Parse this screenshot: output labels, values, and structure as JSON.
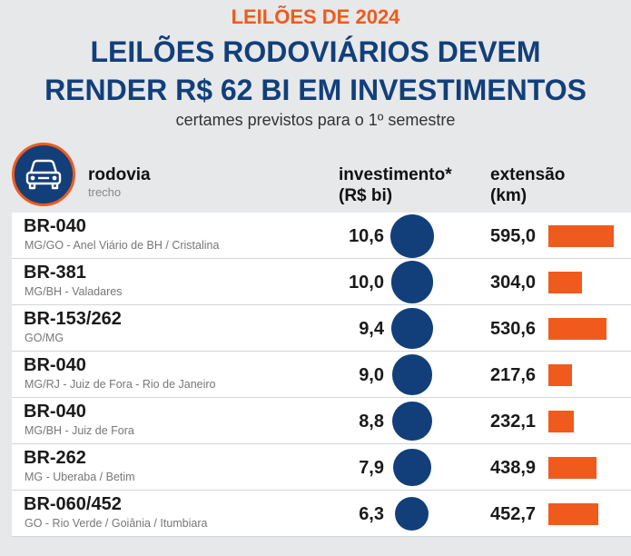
{
  "header": {
    "kicker": "LEILÕES DE 2024",
    "title_line1": "LEILÕES RODOVIÁRIOS DEVEM",
    "title_line2": "RENDER R$ 62 BI EM INVESTIMENTOS",
    "subtitle": "certames previstos para o 1º semestre"
  },
  "icon": "car-icon",
  "columns": {
    "road": "rodovia",
    "road_sub": "trecho",
    "investment_line1": "investimento*",
    "investment_line2": "(R$ bi)",
    "length_line1": "extensão",
    "length_line2": "(km)"
  },
  "colors": {
    "accent_orange": "#f05a1c",
    "navy": "#123f7a",
    "background": "#e6e8ea"
  },
  "chart_data": {
    "type": "table",
    "title": "LEILÕES RODOVIÁRIOS DEVEM RENDER R$ 62 BI EM INVESTIMENTOS",
    "subtitle": "certames previstos para o 1º semestre",
    "rows": [
      {
        "road": "BR-040",
        "stretch": "MG/GO - Anel Viário de BH / Cristalina",
        "investment": "10,6",
        "investment_value": 10.6,
        "length": "595,0",
        "length_value": 595.0
      },
      {
        "road": "BR-381",
        "stretch": "MG/BH - Valadares",
        "investment": "10,0",
        "investment_value": 10.0,
        "length": "304,0",
        "length_value": 304.0
      },
      {
        "road": "BR-153/262",
        "stretch": "GO/MG",
        "investment": "9,4",
        "investment_value": 9.4,
        "length": "530,6",
        "length_value": 530.6
      },
      {
        "road": "BR-040",
        "stretch": "MG/RJ - Juiz de Fora - Rio de Janeiro",
        "investment": "9,0",
        "investment_value": 9.0,
        "length": "217,6",
        "length_value": 217.6
      },
      {
        "road": "BR-040",
        "stretch": "MG/BH - Juiz de Fora",
        "investment": "8,8",
        "investment_value": 8.8,
        "length": "232,1",
        "length_value": 232.1
      },
      {
        "road": "BR-262",
        "stretch": "MG - Uberaba / Betim",
        "investment": "7,9",
        "investment_value": 7.9,
        "length": "438,9",
        "length_value": 438.9
      },
      {
        "road": "BR-060/452",
        "stretch": "GO - Rio Verde / Goiânia / Itumbiara",
        "investment": "6,3",
        "investment_value": 6.3,
        "length": "452,7",
        "length_value": 452.7
      }
    ]
  }
}
